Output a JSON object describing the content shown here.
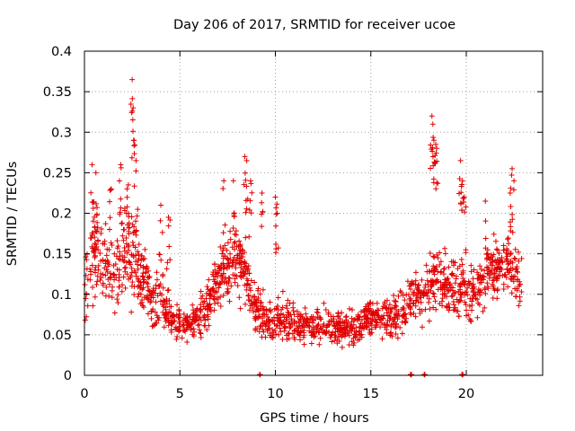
{
  "chart_data": {
    "type": "scatter",
    "title": "Day 206 of 2017, SRMTID for receiver ucoe",
    "xlabel": "GPS time / hours",
    "ylabel": "SRMTID / TECUs",
    "xlim": [
      0,
      24
    ],
    "ylim": [
      0,
      0.4
    ],
    "grid": true,
    "marker": "+",
    "color": "#e00000",
    "x_ticks": [
      0,
      5,
      10,
      15,
      20
    ],
    "x_tick_labels": [
      "0",
      "5",
      "10",
      "15",
      "20"
    ],
    "y_ticks": [
      0,
      0.05,
      0.1,
      0.15,
      0.2,
      0.25,
      0.3,
      0.35,
      0.4
    ],
    "y_tick_labels": [
      "0",
      "0.05",
      "0.1",
      "0.15",
      "0.2",
      "0.25",
      "0.3",
      "0.35",
      "0.4"
    ],
    "series": [
      {
        "name": "SRMTID",
        "envelope": [
          [
            0.0,
            0.1,
            0.04
          ],
          [
            0.5,
            0.16,
            0.06
          ],
          [
            1.0,
            0.14,
            0.05
          ],
          [
            1.5,
            0.12,
            0.04
          ],
          [
            2.0,
            0.15,
            0.05
          ],
          [
            2.5,
            0.16,
            0.06
          ],
          [
            3.0,
            0.12,
            0.04
          ],
          [
            3.5,
            0.1,
            0.035
          ],
          [
            4.0,
            0.09,
            0.035
          ],
          [
            4.5,
            0.07,
            0.025
          ],
          [
            5.0,
            0.06,
            0.02
          ],
          [
            5.5,
            0.065,
            0.02
          ],
          [
            6.0,
            0.07,
            0.025
          ],
          [
            6.5,
            0.09,
            0.03
          ],
          [
            7.0,
            0.12,
            0.035
          ],
          [
            7.5,
            0.13,
            0.04
          ],
          [
            8.0,
            0.14,
            0.04
          ],
          [
            8.5,
            0.13,
            0.035
          ],
          [
            9.0,
            0.08,
            0.03
          ],
          [
            9.5,
            0.07,
            0.03
          ],
          [
            10.0,
            0.07,
            0.025
          ],
          [
            10.5,
            0.07,
            0.025
          ],
          [
            11.0,
            0.065,
            0.02
          ],
          [
            11.5,
            0.06,
            0.02
          ],
          [
            12.0,
            0.06,
            0.02
          ],
          [
            12.5,
            0.06,
            0.02
          ],
          [
            13.0,
            0.06,
            0.02
          ],
          [
            13.5,
            0.06,
            0.02
          ],
          [
            14.0,
            0.06,
            0.02
          ],
          [
            14.5,
            0.065,
            0.02
          ],
          [
            15.0,
            0.07,
            0.02
          ],
          [
            15.5,
            0.07,
            0.02
          ],
          [
            16.0,
            0.07,
            0.025
          ],
          [
            16.5,
            0.08,
            0.025
          ],
          [
            17.0,
            0.09,
            0.03
          ],
          [
            17.5,
            0.1,
            0.03
          ],
          [
            18.0,
            0.11,
            0.035
          ],
          [
            18.5,
            0.12,
            0.035
          ],
          [
            19.0,
            0.11,
            0.035
          ],
          [
            19.5,
            0.11,
            0.035
          ],
          [
            20.0,
            0.1,
            0.035
          ],
          [
            20.5,
            0.11,
            0.035
          ],
          [
            21.0,
            0.12,
            0.035
          ],
          [
            21.5,
            0.13,
            0.035
          ],
          [
            22.0,
            0.14,
            0.035
          ],
          [
            22.5,
            0.13,
            0.035
          ],
          [
            22.9,
            0.12,
            0.035
          ]
        ],
        "spikes": [
          [
            0.4,
            0.26
          ],
          [
            0.6,
            0.25
          ],
          [
            1.4,
            0.23
          ],
          [
            1.9,
            0.26
          ],
          [
            2.3,
            0.235
          ],
          [
            2.5,
            0.365
          ],
          [
            2.55,
            0.33
          ],
          [
            2.6,
            0.29
          ],
          [
            2.7,
            0.265
          ],
          [
            4.0,
            0.21
          ],
          [
            4.4,
            0.195
          ],
          [
            7.3,
            0.24
          ],
          [
            7.8,
            0.24
          ],
          [
            8.4,
            0.27
          ],
          [
            8.5,
            0.265
          ],
          [
            8.7,
            0.24
          ],
          [
            9.3,
            0.225
          ],
          [
            10.0,
            0.22
          ],
          [
            10.1,
            0.2
          ],
          [
            18.2,
            0.32
          ],
          [
            18.25,
            0.31
          ],
          [
            18.3,
            0.29
          ],
          [
            18.4,
            0.285
          ],
          [
            18.45,
            0.28
          ],
          [
            19.7,
            0.265
          ],
          [
            19.8,
            0.24
          ],
          [
            19.9,
            0.22
          ],
          [
            21.0,
            0.215
          ],
          [
            22.4,
            0.255
          ],
          [
            22.5,
            0.24
          ],
          [
            22.3,
            0.225
          ]
        ],
        "zero_points": [
          9.2,
          17.1,
          17.8,
          19.8
        ]
      }
    ]
  }
}
